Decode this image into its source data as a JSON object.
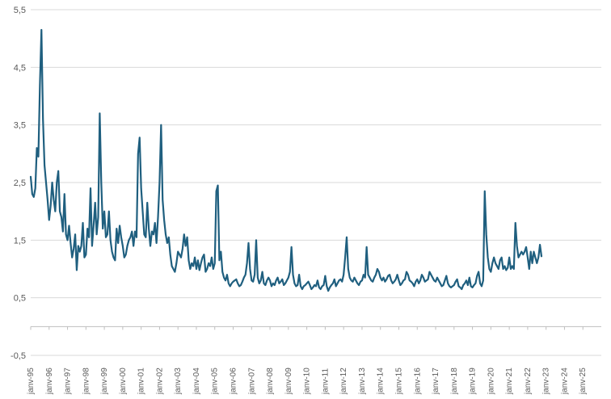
{
  "chart_data": {
    "type": "line",
    "title": "",
    "xlabel": "",
    "ylabel": "",
    "ylim": [
      -0.5,
      5.5
    ],
    "y_ticks": [
      "-0,5",
      "0,5",
      "1,5",
      "2,5",
      "3,5",
      "4,5",
      "5,5"
    ],
    "grid": true,
    "legend": "none",
    "colors": {
      "line": "#1f5f7f",
      "grid": "#d9d9d9",
      "axis": "#bfbfbf",
      "tick_text": "#595959"
    },
    "x_tick_labels": [
      "janv-95",
      "janv-96",
      "janv-97",
      "janv-98",
      "janv-99",
      "janv-00",
      "janv-01",
      "janv-02",
      "janv-03",
      "janv-04",
      "janv-05",
      "janv-06",
      "janv-07",
      "janv-08",
      "janv-09",
      "janv-10",
      "janv-11",
      "janv-12",
      "janv-13",
      "janv-14",
      "janv-15",
      "janv-16",
      "janv-17",
      "janv-18",
      "janv-19",
      "janv-20",
      "janv-21",
      "janv-22",
      "janv-23",
      "janv-24",
      "janv-25"
    ],
    "series": [
      {
        "name": "",
        "x_start": "janv-95",
        "frequency": "monthly",
        "values": [
          2.6,
          2.3,
          2.25,
          2.4,
          3.1,
          2.95,
          4.2,
          5.15,
          3.6,
          2.8,
          2.5,
          2.2,
          1.85,
          2.1,
          2.5,
          2.2,
          2.0,
          2.5,
          2.7,
          2.0,
          1.9,
          1.65,
          2.3,
          1.6,
          1.5,
          1.75,
          1.45,
          1.2,
          1.35,
          1.6,
          0.98,
          1.4,
          1.3,
          1.4,
          1.8,
          1.2,
          1.25,
          1.7,
          1.55,
          2.4,
          1.4,
          1.75,
          2.15,
          1.6,
          1.9,
          3.7,
          2.5,
          1.7,
          2.0,
          1.55,
          1.6,
          2.0,
          1.5,
          1.3,
          1.2,
          1.15,
          1.7,
          1.45,
          1.75,
          1.55,
          1.4,
          1.2,
          1.25,
          1.4,
          1.5,
          1.55,
          1.65,
          1.4,
          1.65,
          1.55,
          3.0,
          3.28,
          2.4,
          2.0,
          1.6,
          1.55,
          2.15,
          1.7,
          1.4,
          1.65,
          1.6,
          1.8,
          1.45,
          1.9,
          2.5,
          3.5,
          2.2,
          1.85,
          1.6,
          1.45,
          1.55,
          1.25,
          1.05,
          1.0,
          0.95,
          1.1,
          1.3,
          1.25,
          1.2,
          1.35,
          1.6,
          1.4,
          1.55,
          1.15,
          1.0,
          1.1,
          1.05,
          1.2,
          1.0,
          1.15,
          0.98,
          1.1,
          1.2,
          1.25,
          0.95,
          1.0,
          1.1,
          1.05,
          1.2,
          1.0,
          1.1,
          2.35,
          2.45,
          1.15,
          1.3,
          0.95,
          0.85,
          0.8,
          0.9,
          0.75,
          0.7,
          0.75,
          0.78,
          0.8,
          0.82,
          0.75,
          0.7,
          0.72,
          0.78,
          0.85,
          0.9,
          1.1,
          1.45,
          1.0,
          0.8,
          0.78,
          0.9,
          1.5,
          0.85,
          0.75,
          0.8,
          0.95,
          0.75,
          0.72,
          0.8,
          0.85,
          0.8,
          0.7,
          0.75,
          0.72,
          0.8,
          0.85,
          0.75,
          0.78,
          0.82,
          0.72,
          0.75,
          0.8,
          0.85,
          0.95,
          1.38,
          0.9,
          0.75,
          0.7,
          0.72,
          0.9,
          0.7,
          0.65,
          0.7,
          0.72,
          0.75,
          0.78,
          0.72,
          0.65,
          0.68,
          0.72,
          0.7,
          0.8,
          0.68,
          0.65,
          0.7,
          0.72,
          0.88,
          0.7,
          0.62,
          0.68,
          0.72,
          0.75,
          0.82,
          0.7,
          0.75,
          0.8,
          0.82,
          0.78,
          0.9,
          1.2,
          1.55,
          1.0,
          0.85,
          0.8,
          0.78,
          0.85,
          0.8,
          0.75,
          0.72,
          0.78,
          0.8,
          0.9,
          0.85,
          1.38,
          0.9,
          0.85,
          0.8,
          0.78,
          0.85,
          0.9,
          1.0,
          0.95,
          0.85,
          0.8,
          0.85,
          0.78,
          0.82,
          0.88,
          0.9,
          0.8,
          0.75,
          0.78,
          0.82,
          0.9,
          0.8,
          0.72,
          0.75,
          0.8,
          0.82,
          0.95,
          0.9,
          0.8,
          0.78,
          0.75,
          0.7,
          0.78,
          0.82,
          0.75,
          0.8,
          0.9,
          0.85,
          0.78,
          0.8,
          0.82,
          0.95,
          0.9,
          0.85,
          0.8,
          0.78,
          0.85,
          0.8,
          0.75,
          0.7,
          0.72,
          0.8,
          0.88,
          0.75,
          0.7,
          0.68,
          0.7,
          0.72,
          0.78,
          0.82,
          0.7,
          0.68,
          0.65,
          0.72,
          0.75,
          0.8,
          0.72,
          0.85,
          0.7,
          0.68,
          0.72,
          0.75,
          0.88,
          0.95,
          0.75,
          0.7,
          0.8,
          2.35,
          1.6,
          1.2,
          1.0,
          0.95,
          1.1,
          1.2,
          1.1,
          1.05,
          1.0,
          1.15,
          1.2,
          1.0,
          1.05,
          0.98,
          1.02,
          1.2,
          1.0,
          1.05,
          1.0,
          1.8,
          1.4,
          1.2,
          1.25,
          1.3,
          1.25,
          1.3,
          1.38,
          1.2,
          1.0,
          1.3,
          1.1,
          1.3,
          1.2,
          1.1,
          1.2,
          1.42,
          1.22
        ]
      }
    ]
  }
}
